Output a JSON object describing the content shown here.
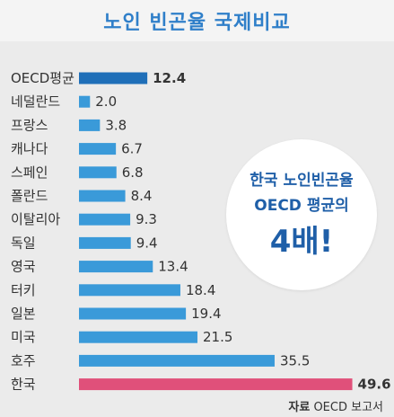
{
  "title": "노인 빈곤율 국제비교",
  "callout": {
    "line1": "한국 노인빈곤율",
    "line2": "OECD 평균의",
    "line3": "4배!"
  },
  "source": {
    "label": "자료",
    "text": "OECD 보고서"
  },
  "colors": {
    "title": "#2f7fc9",
    "oecd_bar": "#1f6fb8",
    "bar": "#3a9ad9",
    "korea_bar": "#e0507a",
    "callout_text": "#1f5fa8"
  },
  "chart_data": {
    "type": "bar",
    "orientation": "horizontal",
    "categories": [
      "OECD평균",
      "네덜란드",
      "프랑스",
      "캐나다",
      "스페인",
      "폴란드",
      "이탈리아",
      "독일",
      "영국",
      "터키",
      "일본",
      "미국",
      "호주",
      "한국"
    ],
    "values": [
      12.4,
      2.0,
      3.8,
      6.7,
      6.8,
      8.4,
      9.3,
      9.4,
      13.4,
      18.4,
      19.4,
      21.5,
      35.5,
      49.6
    ],
    "value_labels": [
      "12.4",
      "2.0",
      "3.8",
      "6.7",
      "6.8",
      "8.4",
      "9.3",
      "9.4",
      "13.4",
      "18.4",
      "19.4",
      "21.5",
      "35.5",
      "49.6"
    ],
    "highlight": {
      "OECD평균": "oecd_bar",
      "한국": "korea_bar"
    },
    "xlim": [
      0,
      50
    ],
    "grid": false,
    "title": "노인 빈곤율 국제비교"
  }
}
